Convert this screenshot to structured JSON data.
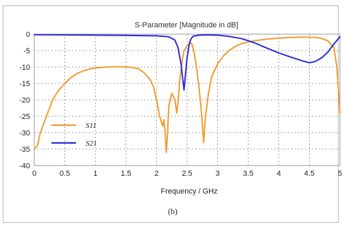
{
  "chart_data": {
    "type": "line",
    "title": "S-Parameter [Magnitude in dB]",
    "xlabel": "Frequency / GHz",
    "ylabel": "",
    "xlim": [
      0,
      5
    ],
    "ylim": [
      -40,
      0
    ],
    "xticks": [
      "0",
      "0.5",
      "1",
      "1.5",
      "2",
      "2.5",
      "3",
      "3.5",
      "4",
      "4.5",
      "5"
    ],
    "yticks": [
      "0",
      "-5",
      "-10",
      "-15",
      "-20",
      "-25",
      "-30",
      "-35",
      "-40"
    ],
    "grid": true,
    "legend_position": "bottom-left",
    "caption": "(b)",
    "series": [
      {
        "name": "S11",
        "color": "#f29b30",
        "points": [
          [
            0.0,
            -35
          ],
          [
            0.05,
            -34
          ],
          [
            0.1,
            -30
          ],
          [
            0.2,
            -25
          ],
          [
            0.3,
            -20
          ],
          [
            0.4,
            -17
          ],
          [
            0.5,
            -15
          ],
          [
            0.6,
            -13.2
          ],
          [
            0.7,
            -12
          ],
          [
            0.8,
            -11.2
          ],
          [
            0.9,
            -10.6
          ],
          [
            1.0,
            -10.3
          ],
          [
            1.2,
            -10.0
          ],
          [
            1.4,
            -9.9
          ],
          [
            1.6,
            -10.1
          ],
          [
            1.7,
            -10.5
          ],
          [
            1.8,
            -11.8
          ],
          [
            1.9,
            -14
          ],
          [
            1.95,
            -16
          ],
          [
            2.0,
            -20
          ],
          [
            2.05,
            -25
          ],
          [
            2.1,
            -28
          ],
          [
            2.12,
            -26
          ],
          [
            2.14,
            -30
          ],
          [
            2.16,
            -36
          ],
          [
            2.18,
            -30
          ],
          [
            2.2,
            -22
          ],
          [
            2.25,
            -18
          ],
          [
            2.3,
            -20
          ],
          [
            2.33,
            -24
          ],
          [
            2.35,
            -21
          ],
          [
            2.38,
            -14
          ],
          [
            2.42,
            -8
          ],
          [
            2.45,
            -5
          ],
          [
            2.5,
            -3.5
          ],
          [
            2.55,
            -2.5
          ],
          [
            2.58,
            -3
          ],
          [
            2.62,
            -6
          ],
          [
            2.66,
            -11
          ],
          [
            2.7,
            -17
          ],
          [
            2.74,
            -25
          ],
          [
            2.77,
            -33
          ],
          [
            2.8,
            -25
          ],
          [
            2.85,
            -18
          ],
          [
            2.9,
            -13
          ],
          [
            3.0,
            -9
          ],
          [
            3.1,
            -6.5
          ],
          [
            3.2,
            -4.8
          ],
          [
            3.3,
            -3.6
          ],
          [
            3.4,
            -2.8
          ],
          [
            3.6,
            -2.0
          ],
          [
            3.8,
            -1.5
          ],
          [
            4.0,
            -1.2
          ],
          [
            4.2,
            -1.0
          ],
          [
            4.4,
            -0.9
          ],
          [
            4.6,
            -1.0
          ],
          [
            4.7,
            -1.3
          ],
          [
            4.8,
            -2.0
          ],
          [
            4.9,
            -4.0
          ],
          [
            4.95,
            -10
          ],
          [
            5.0,
            -24
          ]
        ]
      },
      {
        "name": "S21",
        "color": "#2a2ad8",
        "points": [
          [
            0.0,
            -0.15
          ],
          [
            0.5,
            -0.2
          ],
          [
            1.0,
            -0.3
          ],
          [
            1.5,
            -0.35
          ],
          [
            2.0,
            -0.5
          ],
          [
            2.2,
            -0.8
          ],
          [
            2.3,
            -1.8
          ],
          [
            2.35,
            -4
          ],
          [
            2.4,
            -9
          ],
          [
            2.43,
            -14
          ],
          [
            2.45,
            -17
          ],
          [
            2.47,
            -13
          ],
          [
            2.5,
            -7
          ],
          [
            2.53,
            -3.5
          ],
          [
            2.56,
            -1.5
          ],
          [
            2.6,
            -0.6
          ],
          [
            2.7,
            -0.3
          ],
          [
            2.8,
            -0.2
          ],
          [
            3.0,
            -0.3
          ],
          [
            3.2,
            -0.7
          ],
          [
            3.4,
            -1.4
          ],
          [
            3.6,
            -2.6
          ],
          [
            3.8,
            -4.2
          ],
          [
            4.0,
            -5.7
          ],
          [
            4.2,
            -7.0
          ],
          [
            4.4,
            -8.2
          ],
          [
            4.5,
            -8.7
          ],
          [
            4.6,
            -8.3
          ],
          [
            4.7,
            -7.2
          ],
          [
            4.8,
            -5.5
          ],
          [
            4.9,
            -3.0
          ],
          [
            5.0,
            -0.8
          ]
        ]
      }
    ]
  }
}
